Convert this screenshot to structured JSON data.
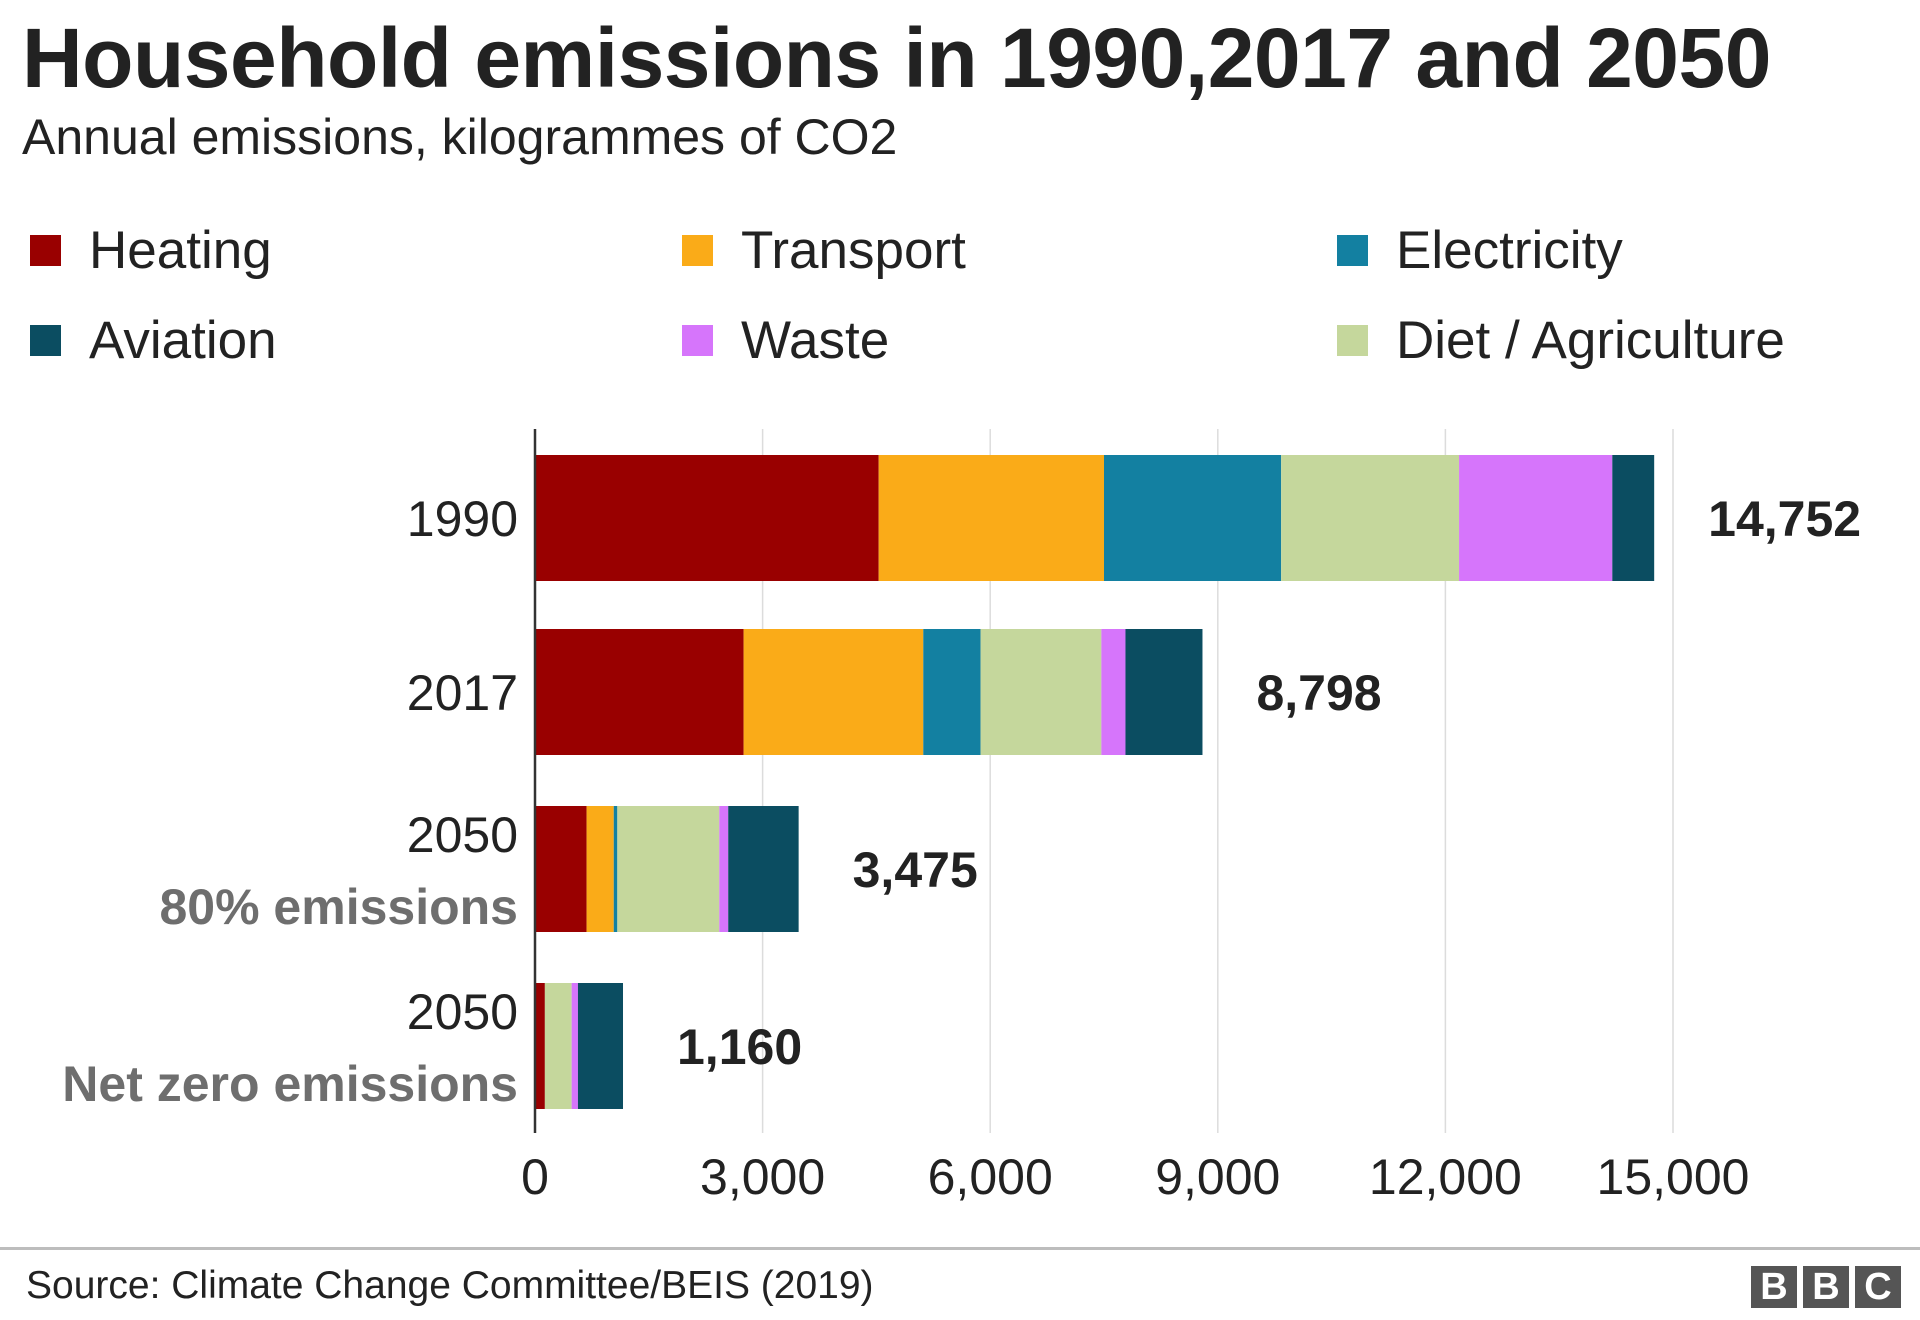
{
  "chart_data": {
    "type": "bar",
    "orientation": "horizontal",
    "stacked": true,
    "title": "Household emissions in 1990,2017 and 2050",
    "subtitle": "Annual emissions, kilogrammes of CO2",
    "categories": [
      {
        "label": "1990",
        "sublabel": ""
      },
      {
        "label": "2017",
        "sublabel": ""
      },
      {
        "label": "2050",
        "sublabel": "80% emissions"
      },
      {
        "label": "2050",
        "sublabel": "Net zero emissions"
      }
    ],
    "totals": [
      "14,752",
      "8,798",
      "3,475",
      "1,160"
    ],
    "series": [
      {
        "name": "Heating",
        "color": "#990000",
        "values": [
          4530,
          2750,
          680,
          130
        ]
      },
      {
        "name": "Transport",
        "color": "#FAAB18",
        "values": [
          2970,
          2368,
          358,
          0
        ]
      },
      {
        "name": "Electricity",
        "color": "#1380A1",
        "values": [
          2335,
          755,
          47,
          0
        ]
      },
      {
        "name": "Diet / Agriculture",
        "color": "#C5D79C",
        "values": [
          2345,
          1592,
          1344,
          353
        ]
      },
      {
        "name": "Waste",
        "color": "#D675FB",
        "values": [
          2020,
          318,
          118,
          83
        ]
      },
      {
        "name": "Aviation",
        "color": "#0B4D61",
        "values": [
          552,
          1015,
          928,
          594
        ]
      }
    ],
    "legend_order": [
      "Heating",
      "Transport",
      "Electricity",
      "Aviation",
      "Waste",
      "Diet / Agriculture"
    ],
    "xlim": [
      0,
      15000
    ],
    "xticks": [
      "0",
      "3,000",
      "6,000",
      "9,000",
      "12,000",
      "15,000"
    ],
    "xtick_values": [
      0,
      3000,
      6000,
      9000,
      12000,
      15000
    ],
    "grid": true,
    "legend_placement": "top"
  },
  "footer": {
    "source": "Source: Climate Change Committee/BEIS (2019)",
    "logo": "BBC"
  }
}
